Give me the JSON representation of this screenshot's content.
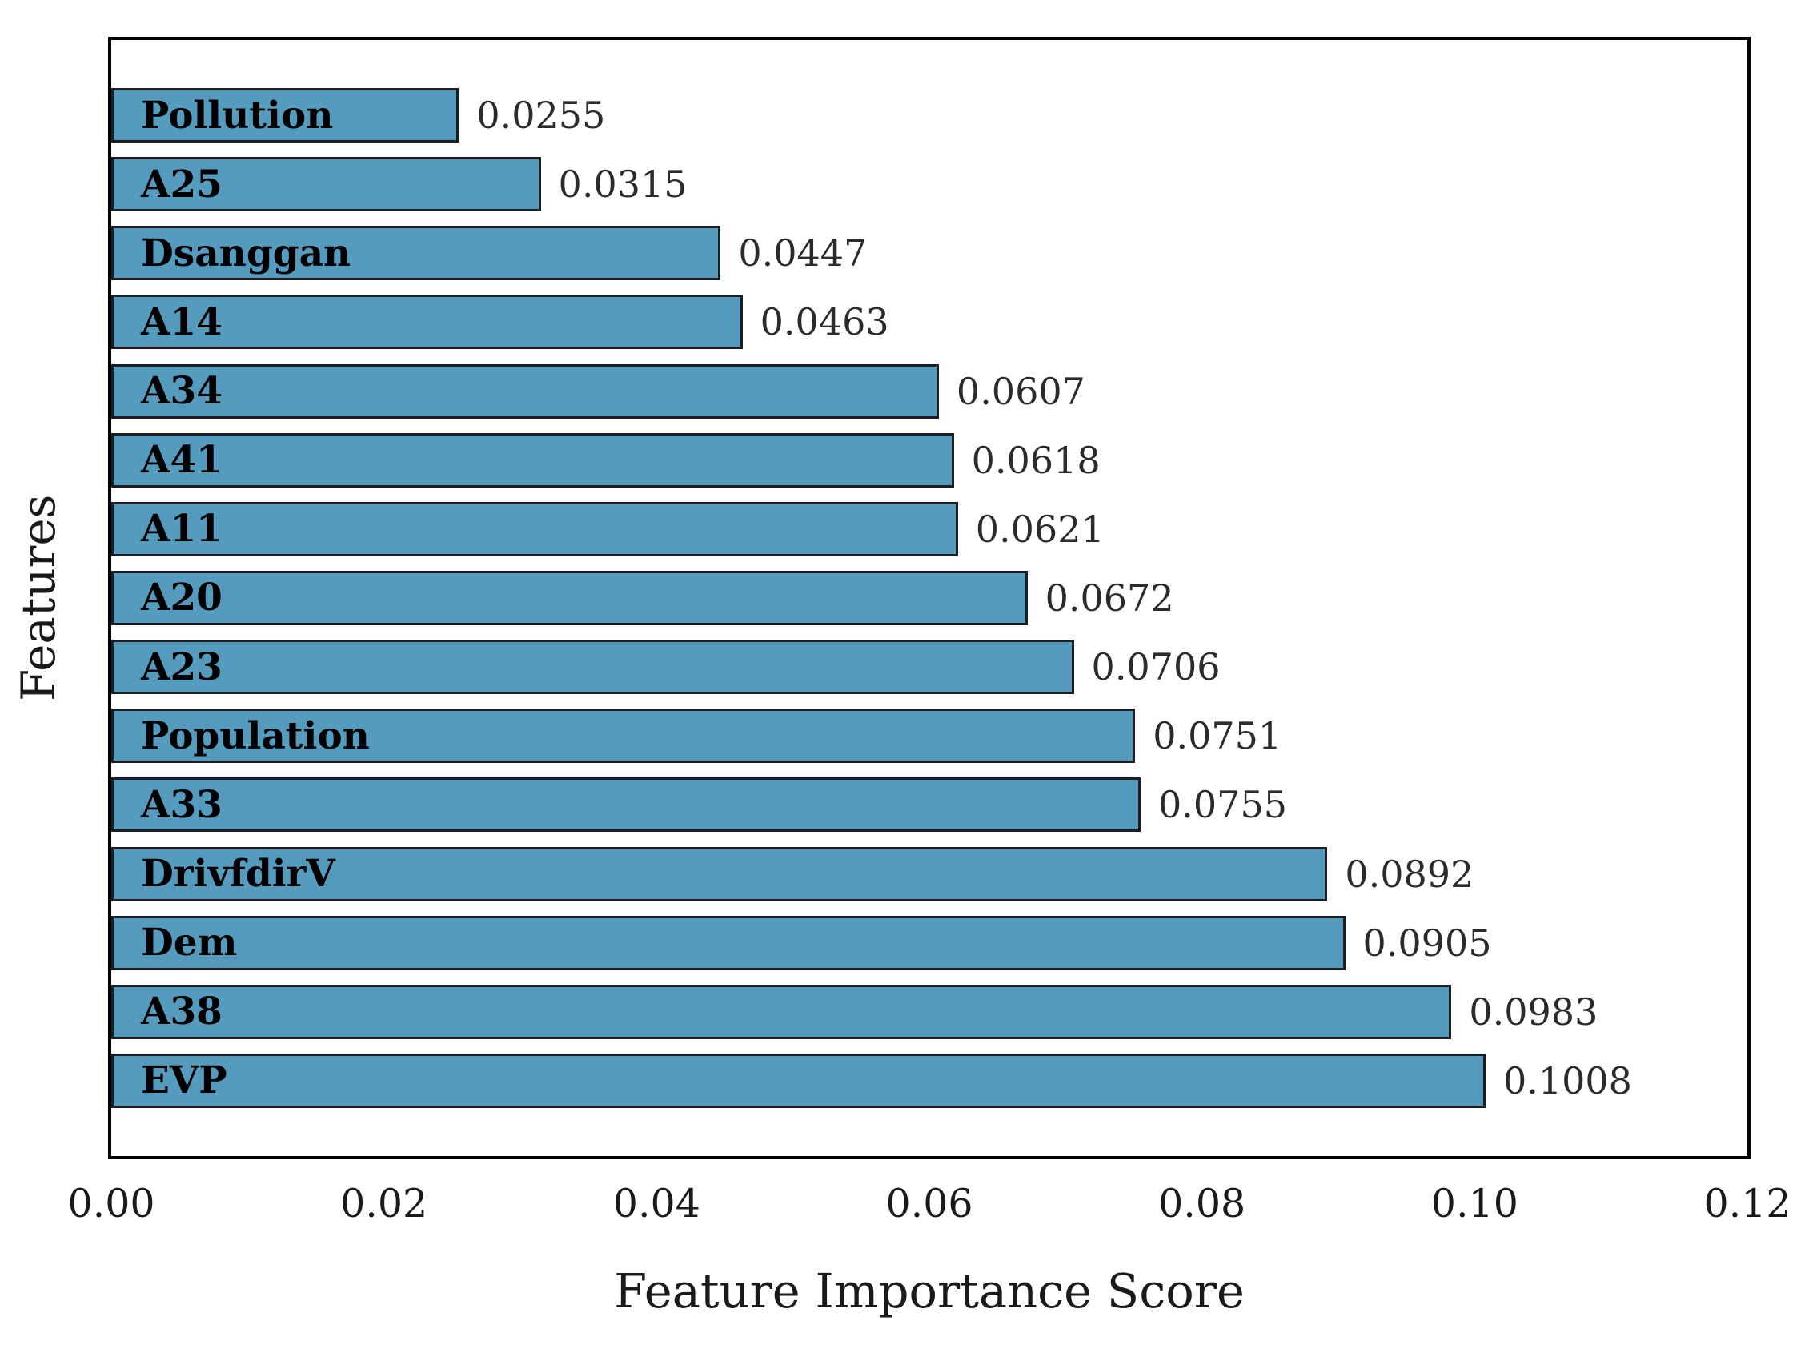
{
  "chart_data": {
    "type": "bar",
    "orientation": "horizontal",
    "title": "",
    "xlabel": "Feature Importance Score",
    "ylabel": "Features",
    "xlim": [
      0,
      0.12
    ],
    "grid": false,
    "legend": null,
    "bar_color": "#559bbe",
    "bar_edge_color": "#1b1f23",
    "xticks": [
      "0.00",
      "0.02",
      "0.04",
      "0.06",
      "0.08",
      "0.10",
      "0.12"
    ],
    "xtick_values": [
      0.0,
      0.02,
      0.04,
      0.06,
      0.08,
      0.1,
      0.12
    ],
    "categories": [
      "Pollution",
      "A25",
      "Dsanggan",
      "A14",
      "A34",
      "A41",
      "A11",
      "A20",
      "A23",
      "Population",
      "A33",
      "DrivfdirV",
      "Dem",
      "A38",
      "EVP"
    ],
    "values": [
      0.0255,
      0.0315,
      0.0447,
      0.0463,
      0.0607,
      0.0618,
      0.0621,
      0.0672,
      0.0706,
      0.0751,
      0.0755,
      0.0892,
      0.0905,
      0.0983,
      0.1008
    ],
    "value_labels": [
      "0.0255",
      "0.0315",
      "0.0447",
      "0.0463",
      "0.0607",
      "0.0618",
      "0.0621",
      "0.0672",
      "0.0706",
      "0.0751",
      "0.0755",
      "0.0892",
      "0.0905",
      "0.0983",
      "0.1008"
    ]
  }
}
